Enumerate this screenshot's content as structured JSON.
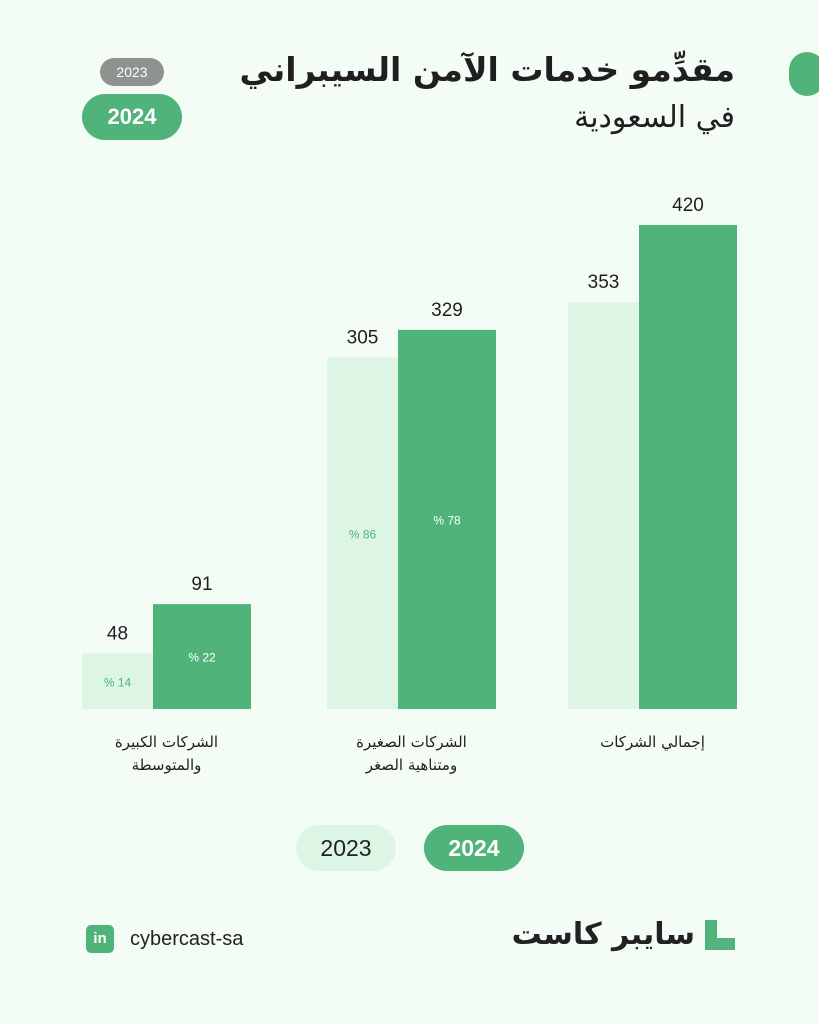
{
  "title": {
    "line1": "مقدِّمو خدمات الآمن السيبراني",
    "line2": "في السعودية"
  },
  "top_legend": {
    "year_2023": "2023",
    "year_2024": "2024"
  },
  "bottom_legend": {
    "year_2023": "2023",
    "year_2024": "2024"
  },
  "colors": {
    "series_2023": "#dcf5e4",
    "series_2024": "#4fb37a",
    "background": "#f4fcf6"
  },
  "chart_data": {
    "type": "bar",
    "categories": [
      [
        "الشركات الكبيرة",
        "والمتوسطة"
      ],
      [
        "الشركات الصغيرة",
        "ومتناهية الصغر"
      ],
      [
        "إجمالي الشركات"
      ]
    ],
    "series": [
      {
        "name": "2023",
        "values": [
          48,
          305,
          353
        ],
        "shares": [
          "% 14",
          "% 86",
          ""
        ]
      },
      {
        "name": "2024",
        "values": [
          91,
          329,
          420
        ],
        "shares": [
          "% 22",
          "% 78",
          ""
        ]
      }
    ],
    "ylim": [
      0,
      420
    ],
    "grid": false,
    "legend": "top-left and bottom"
  },
  "footer": {
    "handle": "cybercast-sa",
    "linkedin_icon_text": "in",
    "brand": "سايبر كاست"
  }
}
